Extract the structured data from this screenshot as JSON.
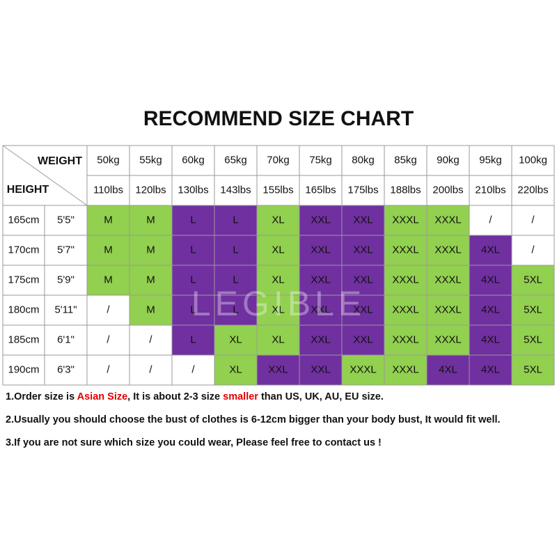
{
  "title": "RECOMMEND SIZE CHART",
  "watermark": "LEGIBLE",
  "table": {
    "weight_label": "WEIGHT",
    "height_label": "HEIGHT",
    "weights_kg": [
      "50kg",
      "55kg",
      "60kg",
      "65kg",
      "70kg",
      "75kg",
      "80kg",
      "85kg",
      "90kg",
      "95kg",
      "100kg"
    ],
    "weights_lbs": [
      "110lbs",
      "120lbs",
      "130lbs",
      "143lbs",
      "155lbs",
      "165lbs",
      "175lbs",
      "188lbs",
      "200lbs",
      "210lbs",
      "220lbs"
    ],
    "colors": {
      "green": "#92d050",
      "purple": "#7030a0",
      "white": "#ffffff"
    },
    "rows": [
      {
        "cm": "165cm",
        "ft": "5'5\"",
        "sizes": [
          "M",
          "M",
          "L",
          "L",
          "XL",
          "XXL",
          "XXL",
          "XXXL",
          "XXXL",
          "/",
          "/"
        ],
        "fills": [
          "green",
          "green",
          "purple",
          "purple",
          "green",
          "purple",
          "purple",
          "green",
          "green",
          "white",
          "white"
        ]
      },
      {
        "cm": "170cm",
        "ft": "5'7\"",
        "sizes": [
          "M",
          "M",
          "L",
          "L",
          "XL",
          "XXL",
          "XXL",
          "XXXL",
          "XXXL",
          "4XL",
          "/"
        ],
        "fills": [
          "green",
          "green",
          "purple",
          "purple",
          "green",
          "purple",
          "purple",
          "green",
          "green",
          "purple",
          "white"
        ]
      },
      {
        "cm": "175cm",
        "ft": "5'9\"",
        "sizes": [
          "M",
          "M",
          "L",
          "L",
          "XL",
          "XXL",
          "XXL",
          "XXXL",
          "XXXL",
          "4XL",
          "5XL"
        ],
        "fills": [
          "green",
          "green",
          "purple",
          "purple",
          "green",
          "purple",
          "purple",
          "green",
          "green",
          "purple",
          "green"
        ]
      },
      {
        "cm": "180cm",
        "ft": "5'11\"",
        "sizes": [
          "/",
          "M",
          "L",
          "L",
          "XL",
          "XXL",
          "XXL",
          "XXXL",
          "XXXL",
          "4XL",
          "5XL"
        ],
        "fills": [
          "white",
          "green",
          "purple",
          "purple",
          "green",
          "purple",
          "purple",
          "green",
          "green",
          "purple",
          "green"
        ]
      },
      {
        "cm": "185cm",
        "ft": "6'1\"",
        "sizes": [
          "/",
          "/",
          "L",
          "XL",
          "XL",
          "XXL",
          "XXL",
          "XXXL",
          "XXXL",
          "4XL",
          "5XL"
        ],
        "fills": [
          "white",
          "white",
          "purple",
          "green",
          "green",
          "purple",
          "purple",
          "green",
          "green",
          "purple",
          "green"
        ]
      },
      {
        "cm": "190cm",
        "ft": "6'3\"",
        "sizes": [
          "/",
          "/",
          "/",
          "XL",
          "XXL",
          "XXL",
          "XXXL",
          "XXXL",
          "4XL",
          "4XL",
          "5XL"
        ],
        "fills": [
          "white",
          "white",
          "white",
          "green",
          "purple",
          "purple",
          "green",
          "green",
          "purple",
          "purple",
          "green"
        ]
      }
    ]
  },
  "notes": [
    [
      "1.Order size is ",
      "Asian Size",
      ", It is about 2-3 size ",
      "smaller",
      " than US, UK, AU, EU size."
    ],
    [
      "2.Usually you should choose the bust of clothes is 6-12cm bigger than your body bust, It would fit well."
    ],
    [
      "3.If you are not sure which size you could wear, Please feel free to contact us !"
    ]
  ]
}
